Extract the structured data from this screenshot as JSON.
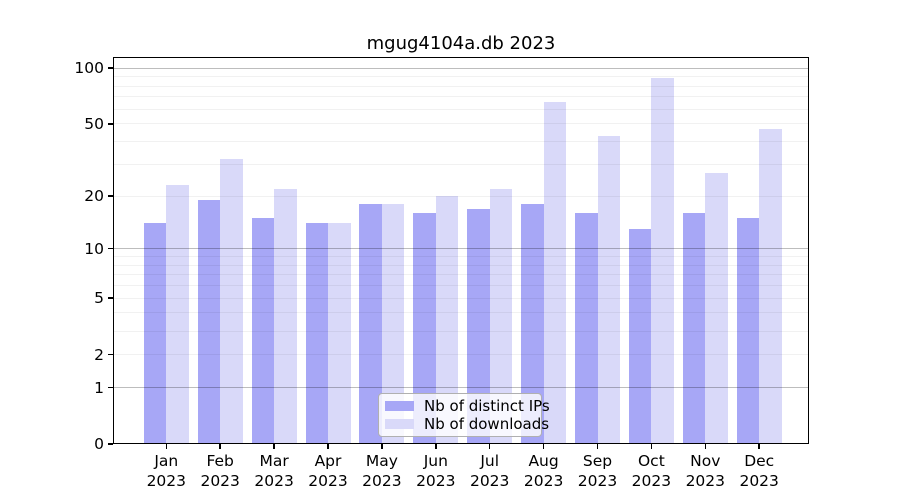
{
  "chart_data": {
    "type": "bar",
    "title": "mgug4104a.db 2023",
    "categories": [
      "Jan",
      "Feb",
      "Mar",
      "Apr",
      "May",
      "Jun",
      "Jul",
      "Aug",
      "Sep",
      "Oct",
      "Nov",
      "Dec"
    ],
    "x_sub_label": "2023",
    "series": [
      {
        "name": "Nb of distinct IPs",
        "color": "#a7a7f6",
        "values": [
          14,
          19,
          15,
          14,
          18,
          16,
          17,
          18,
          16,
          13,
          16,
          15
        ]
      },
      {
        "name": "Nb of downloads",
        "color": "#d9d9f9",
        "values": [
          23,
          32,
          22,
          14,
          18,
          20,
          22,
          66,
          43,
          89,
          27,
          47
        ]
      }
    ],
    "y_ticks": [
      0,
      1,
      2,
      5,
      10,
      20,
      50,
      100
    ],
    "y_major_gridlines": [
      1,
      10,
      100
    ],
    "y_minor_gridlines": [
      2,
      3,
      4,
      5,
      6,
      7,
      8,
      9,
      20,
      30,
      40,
      50,
      60,
      70,
      80,
      90
    ],
    "scale": "log1p",
    "ylim": [
      0,
      114.8
    ],
    "grid": true,
    "grid_over_bars": true,
    "legend_position": "bottom-center",
    "colors": {
      "axis": "#000000",
      "major_grid": "rgba(0,0,0,0.26)",
      "minor_grid": "rgba(0,0,0,0.055)",
      "background": "#ffffff"
    }
  }
}
